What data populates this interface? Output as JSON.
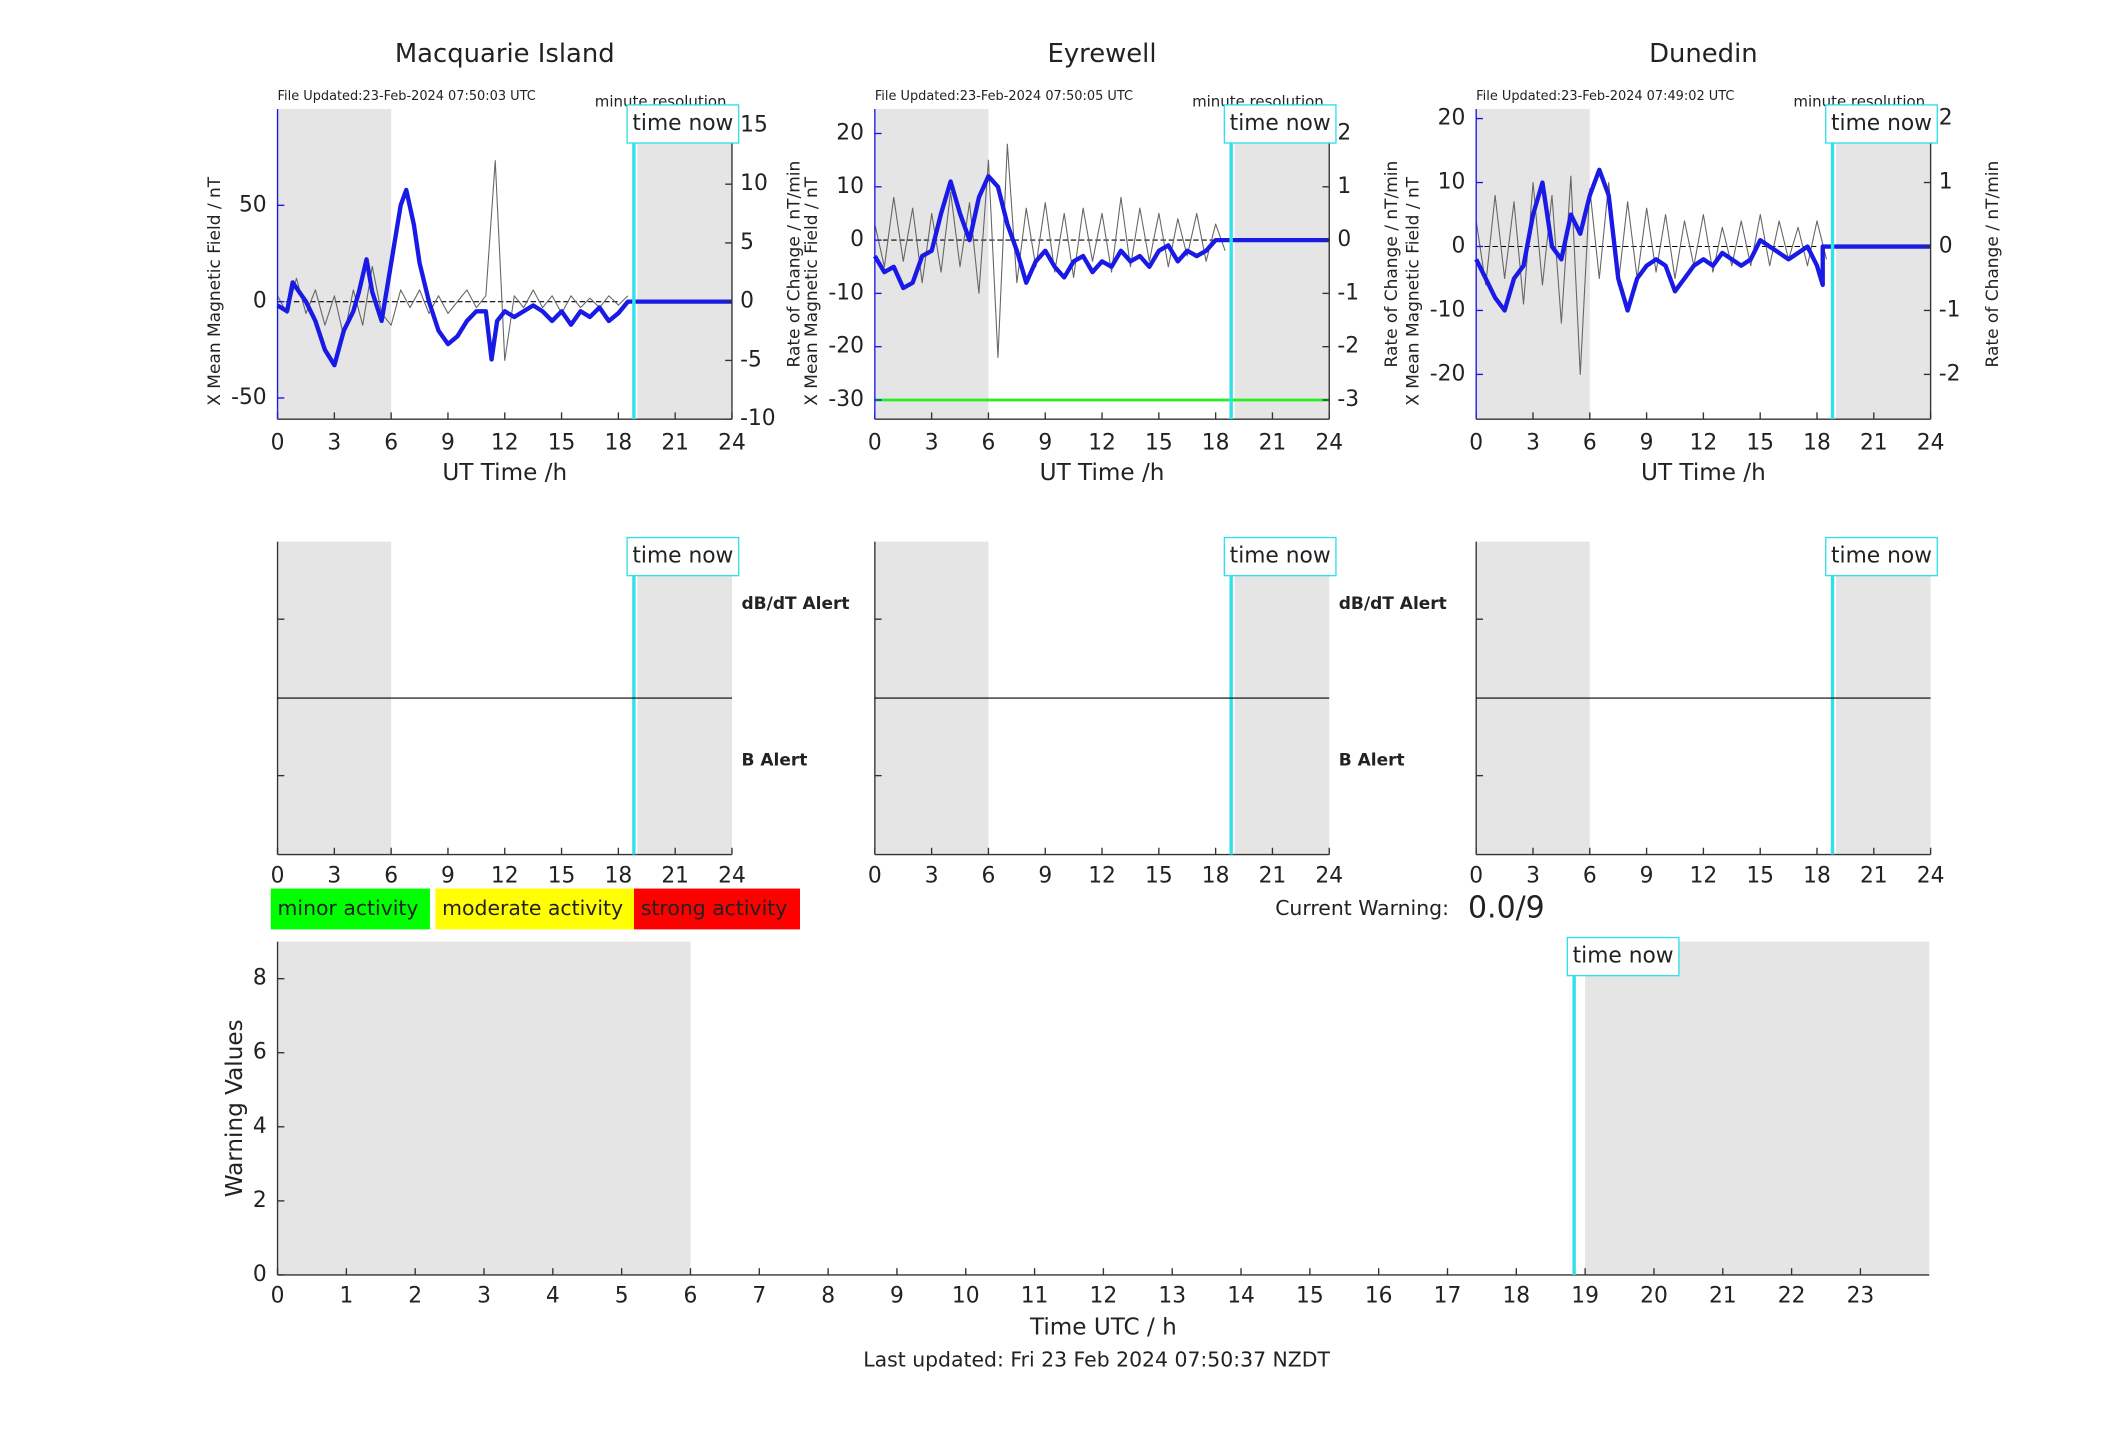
{
  "chart_data": [
    {
      "type": "magnetometer",
      "title": "Macquarie Island",
      "subtitle": "File Updated:23-Feb-2024 07:50:03 UTC",
      "note": "minute resolution",
      "xlabel": "UT Time /h",
      "ylabel": "X Mean Magnetic Field / nT",
      "y2label": "Rate of Change / nT/min",
      "xlim": [
        0,
        24
      ],
      "xticks": [
        0,
        3,
        6,
        9,
        12,
        15,
        18,
        21,
        24
      ],
      "ylim": [
        -61,
        100
      ],
      "yticks": [
        -50,
        0,
        50
      ],
      "y2lim": [
        -10,
        16.4
      ],
      "y2ticks": [
        -10,
        -5,
        0,
        5,
        10,
        15
      ],
      "shade": [
        [
          0,
          6
        ],
        [
          19,
          24
        ]
      ],
      "time_now": 18.82,
      "time_now_label": "time now",
      "series": [
        {
          "color": "#1a1ae6",
          "x": [
            0,
            0.5,
            0.8,
            1.5,
            2,
            2.5,
            3,
            3.5,
            4,
            4.3,
            4.7,
            5,
            5.5,
            6,
            6.5,
            6.8,
            7.2,
            7.5,
            8,
            8.5,
            9,
            9.5,
            10,
            10.5,
            11,
            11.3,
            11.6,
            12,
            12.5,
            13,
            13.5,
            14,
            14.5,
            15,
            15.5,
            16,
            16.5,
            17,
            17.5,
            18,
            18.5,
            18.82,
            24
          ],
          "values": [
            -2,
            -5,
            10,
            0,
            -10,
            -25,
            -33,
            -15,
            -5,
            5,
            22,
            5,
            -10,
            20,
            50,
            58,
            40,
            20,
            0,
            -15,
            -22,
            -18,
            -10,
            -5,
            -5,
            -30,
            -10,
            -5,
            -8,
            -5,
            -2,
            -5,
            -10,
            -5,
            -12,
            -5,
            -8,
            -3,
            -10,
            -6,
            0,
            0,
            0
          ]
        },
        {
          "color": "#666666",
          "axis": "y2",
          "x": [
            0,
            0.5,
            1,
            1.5,
            2,
            2.5,
            3,
            3.5,
            4,
            4.5,
            5,
            5.5,
            6,
            6.5,
            7,
            7.5,
            8,
            8.5,
            9,
            9.5,
            10,
            10.5,
            11,
            11.5,
            12,
            12.5,
            13,
            13.5,
            14,
            14.5,
            15,
            15.5,
            16,
            16.5,
            17,
            17.5,
            18,
            18.5
          ],
          "values": [
            0.5,
            -1,
            2,
            -1,
            1,
            -2,
            0.5,
            -3,
            1,
            -2,
            3,
            -1,
            -2,
            1,
            -0.5,
            1,
            -1,
            0.5,
            -1,
            0,
            1,
            -0.5,
            0.5,
            12,
            -5,
            0.5,
            -0.5,
            1,
            -0.5,
            0.5,
            -1,
            0.5,
            -0.5,
            0.3,
            -0.5,
            0.5,
            -0.3,
            0.5
          ]
        }
      ]
    },
    {
      "type": "magnetometer",
      "title": "Eyrewell",
      "subtitle": "File Updated:23-Feb-2024 07:50:05 UTC",
      "note": "minute resolution",
      "xlabel": "UT Time /h",
      "ylabel": "X Mean Magnetic Field / nT",
      "y2label": "Rate of Change / nT/min",
      "xlim": [
        0,
        24
      ],
      "xticks": [
        0,
        3,
        6,
        9,
        12,
        15,
        18,
        21,
        24
      ],
      "ylim": [
        -33.6,
        24.6
      ],
      "yticks": [
        -30,
        -20,
        -10,
        0,
        10,
        20
      ],
      "y2lim": [
        -3.36,
        2.46
      ],
      "y2ticks": [
        -3,
        -2,
        -1,
        0,
        1,
        2
      ],
      "shade": [
        [
          0,
          6
        ],
        [
          19,
          24
        ]
      ],
      "time_now": 18.82,
      "time_now_label": "time now",
      "threshold": -30,
      "threshold_color": "#22ee22",
      "series": [
        {
          "color": "#1a1ae6",
          "x": [
            0,
            0.5,
            1,
            1.5,
            2,
            2.5,
            3,
            3.5,
            4,
            4.5,
            5,
            5.5,
            6,
            6.5,
            7,
            7.5,
            8,
            8.5,
            9,
            9.5,
            10,
            10.5,
            11,
            11.5,
            12,
            12.5,
            13,
            13.5,
            14,
            14.5,
            15,
            15.5,
            16,
            16.5,
            17,
            17.5,
            18,
            18.82,
            24
          ],
          "values": [
            -3,
            -6,
            -5,
            -9,
            -8,
            -3,
            -2,
            5,
            11,
            5,
            0,
            8,
            12,
            10,
            3,
            -2,
            -8,
            -4,
            -2,
            -5,
            -7,
            -4,
            -3,
            -6,
            -4,
            -5,
            -2,
            -4,
            -3,
            -5,
            -2,
            -1,
            -4,
            -2,
            -3,
            -2,
            0,
            0,
            0
          ]
        },
        {
          "color": "#666666",
          "axis": "y2",
          "x": [
            0,
            0.5,
            1,
            1.5,
            2,
            2.5,
            3,
            3.5,
            4,
            4.5,
            5,
            5.5,
            6,
            6.5,
            7,
            7.5,
            8,
            8.5,
            9,
            9.5,
            10,
            10.5,
            11,
            11.5,
            12,
            12.5,
            13,
            13.5,
            14,
            14.5,
            15,
            15.5,
            16,
            16.5,
            17,
            17.5,
            18,
            18.5
          ],
          "values": [
            0.3,
            -0.5,
            0.8,
            -0.4,
            0.6,
            -0.8,
            0.5,
            -0.6,
            0.9,
            -0.5,
            0.7,
            -1.0,
            1.5,
            -2.2,
            1.8,
            -0.8,
            0.6,
            -0.5,
            0.7,
            -0.6,
            0.5,
            -0.7,
            0.6,
            -0.4,
            0.5,
            -0.6,
            0.8,
            -0.5,
            0.6,
            -0.4,
            0.5,
            -0.5,
            0.4,
            -0.3,
            0.5,
            -0.4,
            0.3,
            -0.2
          ]
        }
      ]
    },
    {
      "type": "magnetometer",
      "title": "Dunedin",
      "subtitle": "File Updated:23-Feb-2024 07:49:02 UTC",
      "note": "minute resolution",
      "xlabel": "UT Time /h",
      "ylabel": "X Mean Magnetic Field / nT",
      "y2label": "Rate of Change / nT/min",
      "xlim": [
        0,
        24
      ],
      "xticks": [
        0,
        3,
        6,
        9,
        12,
        15,
        18,
        21,
        24
      ],
      "ylim": [
        -27,
        21.5
      ],
      "yticks": [
        -20,
        -10,
        0,
        10,
        20
      ],
      "y2lim": [
        -2.7,
        2.15
      ],
      "y2ticks": [
        -2,
        -1,
        0,
        1,
        2
      ],
      "shade": [
        [
          0,
          6
        ],
        [
          19,
          24
        ]
      ],
      "time_now": 18.82,
      "time_now_label": "time now",
      "series": [
        {
          "color": "#1a1ae6",
          "x": [
            0,
            0.5,
            1,
            1.5,
            2,
            2.5,
            3,
            3.5,
            4,
            4.5,
            5,
            5.5,
            6,
            6.5,
            7,
            7.5,
            8,
            8.5,
            9,
            9.5,
            10,
            10.5,
            11,
            11.5,
            12,
            12.5,
            13,
            13.5,
            14,
            14.5,
            15,
            15.5,
            16,
            16.5,
            17,
            17.5,
            18,
            18.3,
            18.3,
            24
          ],
          "values": [
            -2,
            -5,
            -8,
            -10,
            -5,
            -3,
            5,
            10,
            0,
            -2,
            5,
            2,
            8,
            12,
            8,
            -5,
            -10,
            -5,
            -3,
            -2,
            -3,
            -7,
            -5,
            -3,
            -2,
            -3,
            -1,
            -2,
            -3,
            -2,
            1,
            0,
            -1,
            -2,
            -1,
            0,
            -3,
            -6,
            0,
            0
          ]
        },
        {
          "color": "#666666",
          "axis": "y2",
          "x": [
            0,
            0.5,
            1,
            1.5,
            2,
            2.5,
            3,
            3.5,
            4,
            4.5,
            5,
            5.5,
            6,
            6.5,
            7,
            7.5,
            8,
            8.5,
            9,
            9.5,
            10,
            10.5,
            11,
            11.5,
            12,
            12.5,
            13,
            13.5,
            14,
            14.5,
            15,
            15.5,
            16,
            16.5,
            17,
            17.5,
            18,
            18.5
          ],
          "values": [
            0.4,
            -0.6,
            0.8,
            -0.5,
            0.7,
            -0.9,
            1.0,
            -0.6,
            0.8,
            -1.2,
            1.1,
            -2.0,
            0.9,
            -0.5,
            1.0,
            -0.6,
            0.7,
            -0.5,
            0.6,
            -0.4,
            0.5,
            -0.5,
            0.4,
            -0.3,
            0.5,
            -0.4,
            0.3,
            -0.3,
            0.4,
            -0.3,
            0.5,
            -0.3,
            0.4,
            -0.2,
            0.3,
            -0.3,
            0.4,
            -0.2
          ]
        }
      ]
    },
    {
      "type": "alert",
      "xlim": [
        0,
        24
      ],
      "xticks": [
        0,
        3,
        6,
        9,
        12,
        15,
        18,
        21,
        24
      ],
      "shade": [
        [
          0,
          6
        ],
        [
          19,
          24
        ]
      ],
      "time_now": 18.82,
      "time_now_label": "time now",
      "upper_label": "dB/dT Alert",
      "lower_label": "B Alert",
      "lower_color": "#1a1ae6"
    },
    {
      "type": "alert",
      "xlim": [
        0,
        24
      ],
      "xticks": [
        0,
        3,
        6,
        9,
        12,
        15,
        18,
        21,
        24
      ],
      "shade": [
        [
          0,
          6
        ],
        [
          19,
          24
        ]
      ],
      "time_now": 18.82,
      "time_now_label": "time now",
      "upper_label": "dB/dT Alert",
      "lower_label": "B Alert",
      "lower_color": "#1a1ae6"
    },
    {
      "type": "alert",
      "xlim": [
        0,
        24
      ],
      "xticks": [
        0,
        3,
        6,
        9,
        12,
        15,
        18,
        21,
        24
      ],
      "shade": [
        [
          0,
          6
        ],
        [
          19,
          24
        ]
      ],
      "time_now": 18.82,
      "time_now_label": "time now"
    },
    {
      "type": "warning",
      "xlabel": "Time UTC / h",
      "ylabel": "Warning Values",
      "xlim": [
        0,
        24
      ],
      "xticks": [
        0,
        1,
        2,
        3,
        4,
        5,
        6,
        7,
        8,
        9,
        10,
        11,
        12,
        13,
        14,
        15,
        16,
        17,
        18,
        19,
        20,
        21,
        22,
        23
      ],
      "ylim": [
        0,
        9
      ],
      "yticks": [
        0,
        2,
        4,
        6,
        8
      ],
      "shade": [
        [
          0,
          6
        ],
        [
          19,
          24
        ]
      ],
      "time_now": 18.84,
      "time_now_label": "time now",
      "legend": [
        {
          "label": "minor activity",
          "color": "#00ff00"
        },
        {
          "label": "moderate activity",
          "color": "#ffff00"
        },
        {
          "label": "strong activity",
          "color": "#ff0000"
        }
      ],
      "current_warning_label": "Current Warning:",
      "current_warning": "0.0/9",
      "footnote": "Last updated: Fri 23 Feb 2024 07:50:37 NZDT"
    }
  ]
}
